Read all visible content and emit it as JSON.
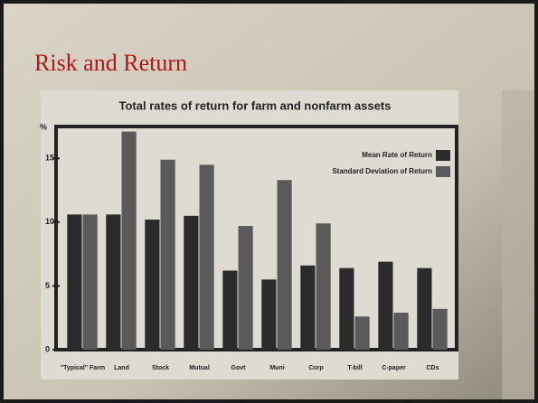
{
  "slide": {
    "title": "Risk and Return"
  },
  "chart_data": {
    "type": "bar",
    "title": "Total rates of return for farm and nonfarm assets",
    "y_label": "%",
    "categories": [
      "\"Typical\" Farm",
      "Land",
      "Stock",
      "Mutual",
      "Govt",
      "Muni",
      "Corp",
      "T-bill",
      "C-paper",
      "CDs"
    ],
    "series": [
      {
        "name": "Mean Rate of Return",
        "color": "#2b2b2b",
        "values": [
          10.6,
          10.6,
          10.2,
          10.5,
          6.2,
          5.5,
          6.6,
          6.4,
          6.9,
          6.4
        ]
      },
      {
        "name": "Standard Deviation of Return",
        "color": "#5a5a5a",
        "values": [
          10.6,
          17.1,
          14.9,
          14.5,
          9.7,
          13.3,
          9.9,
          2.6,
          2.9,
          3.2
        ]
      }
    ],
    "ylim": [
      0,
      17.5
    ],
    "yticks": [
      0,
      5,
      10,
      15
    ],
    "legend": "upper-right"
  }
}
